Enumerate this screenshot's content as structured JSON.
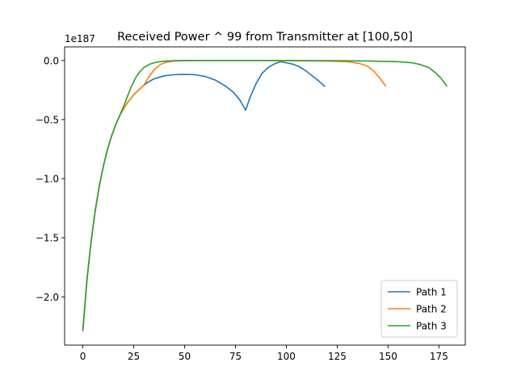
{
  "chart_data": {
    "type": "line",
    "title": "Received Power ^ 99 from Transmitter at [100,50]",
    "xlabel": "",
    "ylabel": "",
    "offset_text": "1e187",
    "xlim": [
      -8.95,
      187.95
    ],
    "ylim": [
      -2.408,
      0.115
    ],
    "x_ticks": [
      0,
      25,
      50,
      75,
      100,
      125,
      150,
      175
    ],
    "x_tick_labels": [
      "0",
      "25",
      "50",
      "75",
      "100",
      "125",
      "150",
      "175"
    ],
    "y_ticks": [
      0.0,
      -0.5,
      -1.0,
      -1.5,
      -2.0
    ],
    "y_tick_labels": [
      "0.0",
      "−0.5",
      "−1.0",
      "−1.5",
      "−2.0"
    ],
    "grid": false,
    "legend_position": "lower right",
    "series": [
      {
        "name": "Path 1",
        "color": "#1f77b4",
        "x": [
          0,
          2,
          4,
          6,
          8,
          10,
          12,
          14,
          16,
          18,
          20,
          22,
          25,
          28,
          31,
          35,
          40,
          45,
          50,
          55,
          60,
          65,
          70,
          74,
          77,
          80,
          82,
          85,
          88,
          91,
          94,
          97,
          100,
          103,
          106,
          109,
          112,
          115,
          119
        ],
        "values": [
          -2.29,
          -1.86,
          -1.54,
          -1.28,
          -1.07,
          -0.9,
          -0.76,
          -0.645,
          -0.55,
          -0.47,
          -0.41,
          -0.355,
          -0.29,
          -0.24,
          -0.195,
          -0.155,
          -0.13,
          -0.12,
          -0.118,
          -0.12,
          -0.135,
          -0.165,
          -0.215,
          -0.27,
          -0.33,
          -0.42,
          -0.32,
          -0.2,
          -0.11,
          -0.06,
          -0.03,
          -0.01,
          -0.02,
          -0.03,
          -0.05,
          -0.08,
          -0.12,
          -0.16,
          -0.22
        ]
      },
      {
        "name": "Path 2",
        "color": "#ff7f0e",
        "x": [
          0,
          2,
          4,
          6,
          8,
          10,
          12,
          14,
          16,
          18,
          20,
          22,
          25,
          28,
          30,
          32,
          35,
          38,
          41,
          45,
          50,
          60,
          80,
          100,
          120,
          130,
          136,
          140,
          143,
          146,
          149
        ],
        "values": [
          -2.29,
          -1.86,
          -1.54,
          -1.28,
          -1.07,
          -0.9,
          -0.76,
          -0.645,
          -0.55,
          -0.47,
          -0.41,
          -0.355,
          -0.29,
          -0.24,
          -0.21,
          -0.15,
          -0.08,
          -0.035,
          -0.015,
          -0.005,
          -0.001,
          0.0,
          0.0,
          -0.001,
          -0.005,
          -0.01,
          -0.025,
          -0.05,
          -0.09,
          -0.15,
          -0.22
        ]
      },
      {
        "name": "Path 3",
        "color": "#2ca02c",
        "x": [
          0,
          2,
          4,
          6,
          8,
          10,
          12,
          14,
          16,
          18,
          20,
          22,
          24,
          26,
          28,
          30,
          33,
          36,
          40,
          45,
          50,
          60,
          80,
          100,
          120,
          140,
          155,
          162,
          166,
          170,
          173,
          176,
          179
        ],
        "values": [
          -2.29,
          -1.86,
          -1.54,
          -1.28,
          -1.07,
          -0.9,
          -0.76,
          -0.645,
          -0.55,
          -0.47,
          -0.39,
          -0.3,
          -0.215,
          -0.145,
          -0.095,
          -0.06,
          -0.03,
          -0.015,
          -0.006,
          -0.002,
          -0.001,
          0.0,
          0.0,
          -0.001,
          -0.002,
          -0.004,
          -0.01,
          -0.02,
          -0.035,
          -0.06,
          -0.1,
          -0.15,
          -0.22
        ]
      }
    ]
  }
}
